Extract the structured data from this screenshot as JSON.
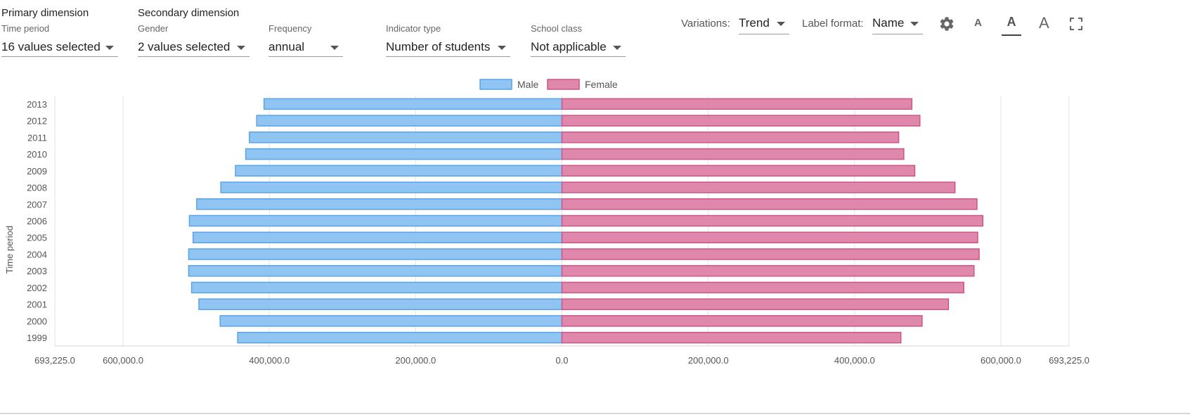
{
  "filters": {
    "primary_title": "Primary dimension",
    "secondary_title": "Secondary dimension",
    "time_period": {
      "label": "Time period",
      "value": "16 values selected"
    },
    "gender": {
      "label": "Gender",
      "value": "2 values selected"
    },
    "frequency": {
      "label": "Frequency",
      "value": "annual"
    },
    "indicator_type": {
      "label": "Indicator type",
      "value": "Number of students"
    },
    "school_class": {
      "label": "School class",
      "value": "Not applicable"
    }
  },
  "toolbar": {
    "variations_label": "Variations:",
    "variations_value": "Trend",
    "label_format_label": "Label format:",
    "label_format_value": "Name",
    "font_small": "A",
    "font_medium": "A",
    "font_large": "A",
    "icons": [
      "gear-icon",
      "font-size-small-icon",
      "font-size-medium-icon",
      "font-size-large-icon",
      "fullscreen-icon"
    ]
  },
  "chart_data": {
    "type": "bar",
    "orientation": "horizontal",
    "layout": "population-pyramid",
    "ylabel": "Time period",
    "categories": [
      "2013",
      "2012",
      "2011",
      "2010",
      "2009",
      "2008",
      "2007",
      "2006",
      "2005",
      "2004",
      "2003",
      "2002",
      "2001",
      "2000",
      "1999"
    ],
    "series": [
      {
        "name": "Male",
        "color": "#90c4f2",
        "stroke": "#5aa3e6",
        "values": [
          408000,
          418000,
          428000,
          433000,
          447000,
          467000,
          500000,
          510000,
          505000,
          511000,
          511000,
          507000,
          497000,
          468000,
          444000
        ]
      },
      {
        "name": "Female",
        "color": "#e088ab",
        "stroke": "#cc5686",
        "values": [
          479000,
          490000,
          461000,
          468000,
          483000,
          538000,
          568000,
          576000,
          569000,
          571000,
          564000,
          550000,
          529000,
          493000,
          464000
        ]
      }
    ],
    "xlim": [
      -693225,
      693225
    ],
    "x_ticks": [
      {
        "value": -693225,
        "label": "693,225.0"
      },
      {
        "value": -600000,
        "label": "600,000.0"
      },
      {
        "value": -400000,
        "label": "400,000.0"
      },
      {
        "value": -200000,
        "label": "200,000.0"
      },
      {
        "value": 0,
        "label": "0.0"
      },
      {
        "value": 200000,
        "label": "200,000.0"
      },
      {
        "value": 400000,
        "label": "400,000.0"
      },
      {
        "value": 600000,
        "label": "600,000.0"
      },
      {
        "value": 693225,
        "label": "693,225.0"
      }
    ],
    "grid": true,
    "legend_position": "top-center"
  }
}
